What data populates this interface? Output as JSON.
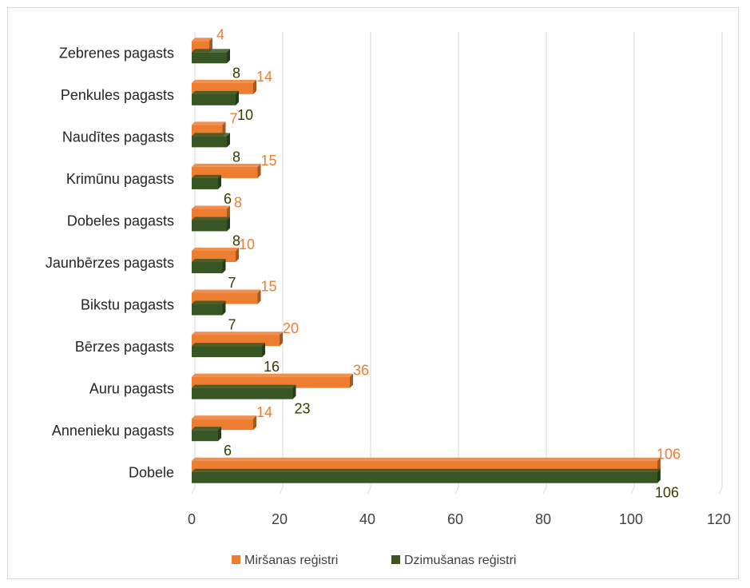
{
  "chart_data": {
    "type": "bar",
    "orientation": "horizontal",
    "categories": [
      "Zebrenes pagasts",
      "Penkules pagasts",
      "Naudītes pagasts",
      "Krimūnu pagasts",
      "Dobeles pagasts",
      "Jaunbērzes pagasts",
      "Bikstu pagasts",
      "Bērzes pagasts",
      "Auru pagasts",
      "Annenieku pagasts",
      "Dobele"
    ],
    "series": [
      {
        "name": "Miršanas reģistri",
        "color": "#ed7d31",
        "label_color": "#ed7d31",
        "values": [
          4,
          14,
          7,
          15,
          8,
          10,
          15,
          20,
          36,
          14,
          106
        ]
      },
      {
        "name": "Dzimušanas reģistri",
        "color": "#375623",
        "label_color": "#3a3a00",
        "values": [
          8,
          10,
          8,
          6,
          8,
          7,
          7,
          16,
          23,
          6,
          106
        ]
      }
    ],
    "xlim": [
      0,
      120
    ],
    "xticks": [
      0,
      20,
      40,
      60,
      80,
      100,
      120
    ],
    "grid": "vertical",
    "legend_position": "bottom",
    "data_labels": true
  }
}
